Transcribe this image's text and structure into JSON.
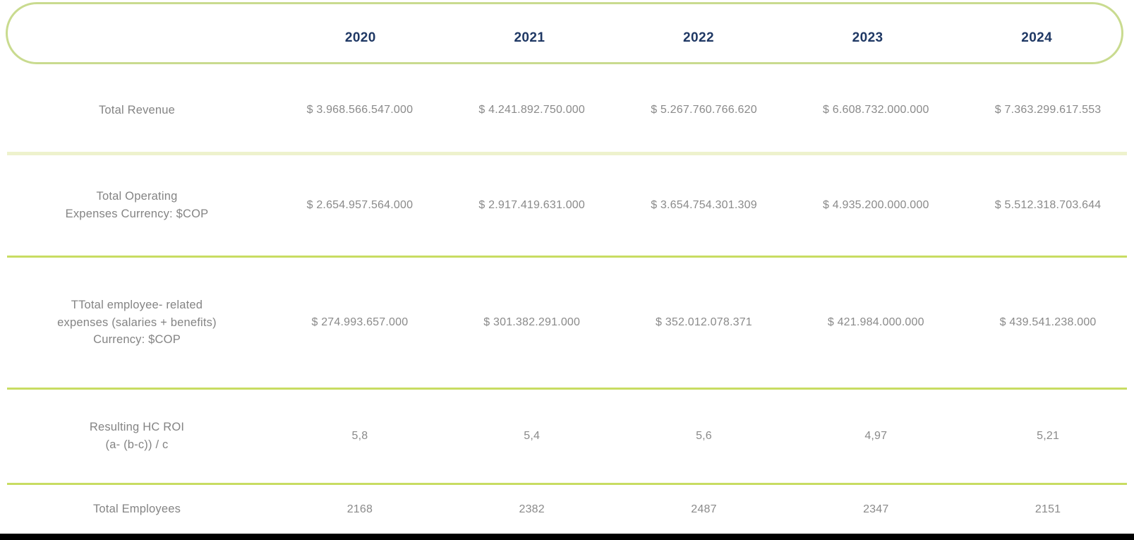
{
  "colors": {
    "header_text": "#1f3864",
    "body_text": "#8a8a8a",
    "pill_border": "#c9db8f",
    "separator_pale": "#eef2cd",
    "separator_bright": "#c8dc62",
    "bottom_bar": "#000000"
  },
  "table": {
    "year_headers": [
      "2020",
      "2021",
      "2022",
      "2023",
      "2024"
    ],
    "rows": [
      {
        "label": "Total Revenue",
        "values": [
          "$ 3.968.566.547.000",
          "$ 4.241.892.750.000",
          "$ 5.267.760.766.620",
          "$ 6.608.732.000.000",
          "$ 7.363.299.617.553"
        ]
      },
      {
        "label": "Total Operating\nExpenses Currency: $COP",
        "values": [
          "$ 2.654.957.564.000",
          "$ 2.917.419.631.000",
          "$ 3.654.754.301.309",
          "$ 4.935.200.000.000",
          "$ 5.512.318.703.644"
        ]
      },
      {
        "label": "TTotal employee- related\nexpenses (salaries + benefits)\nCurrency: $COP",
        "values": [
          "$ 274.993.657.000",
          "$ 301.382.291.000",
          "$ 352.012.078.371",
          "$ 421.984.000.000",
          "$ 439.541.238.000"
        ]
      },
      {
        "label": "Resulting HC ROI\n(a- (b-c)) / c",
        "values": [
          "5,8",
          "5,4",
          "5,6",
          "4,97",
          "5,21"
        ]
      },
      {
        "label": "Total Employees",
        "values": [
          "2168",
          "2382",
          "2487",
          "2347",
          "2151"
        ]
      }
    ]
  }
}
